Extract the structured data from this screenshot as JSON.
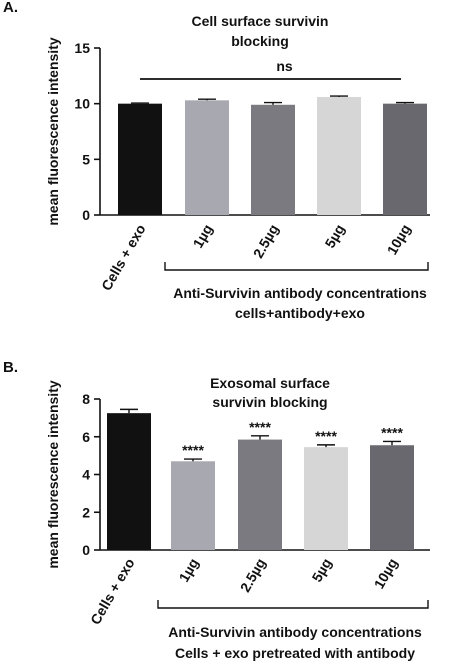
{
  "chart_data": [
    {
      "panel": "A.",
      "type": "bar",
      "title_lines": [
        "Cell surface survivin",
        "blocking"
      ],
      "ylabel": "mean fluorescence intensity",
      "ylim": [
        0,
        15
      ],
      "yticks": [
        0,
        5,
        10,
        15
      ],
      "categories": [
        "Cells + exo",
        "1µg",
        "2.5µg",
        "5µg",
        "10µg"
      ],
      "values": [
        10.0,
        10.3,
        9.9,
        10.6,
        10.0
      ],
      "errors": [
        0.05,
        0.1,
        0.2,
        0.08,
        0.1
      ],
      "colors": [
        "#111111",
        "#a8a8b0",
        "#7a7a80",
        "#d6d6d6",
        "#68686e"
      ],
      "annotation": "ns",
      "group_label_lines": [
        "Anti-Survivin antibody concentrations",
        "cells+antibody+exo"
      ]
    },
    {
      "panel": "B.",
      "type": "bar",
      "title_lines": [
        "Exosomal surface",
        "survivin blocking"
      ],
      "ylabel": "mean fluorescence intensity",
      "ylim": [
        0,
        8
      ],
      "yticks": [
        0,
        2,
        4,
        6,
        8
      ],
      "categories": [
        "Cells + exo",
        "1µg",
        "2.5µg",
        "5µg",
        "10µg"
      ],
      "values": [
        7.25,
        4.7,
        5.85,
        5.45,
        5.55
      ],
      "errors": [
        0.2,
        0.12,
        0.2,
        0.12,
        0.2
      ],
      "colors": [
        "#111111",
        "#a8a8b0",
        "#7a7a80",
        "#d6d6d6",
        "#68686e"
      ],
      "significance": [
        "",
        "****",
        "****",
        "****",
        "****"
      ],
      "group_label_lines": [
        "Anti-Survivin antibody concentrations",
        "Cells + exo pretreated with antibody"
      ]
    }
  ]
}
